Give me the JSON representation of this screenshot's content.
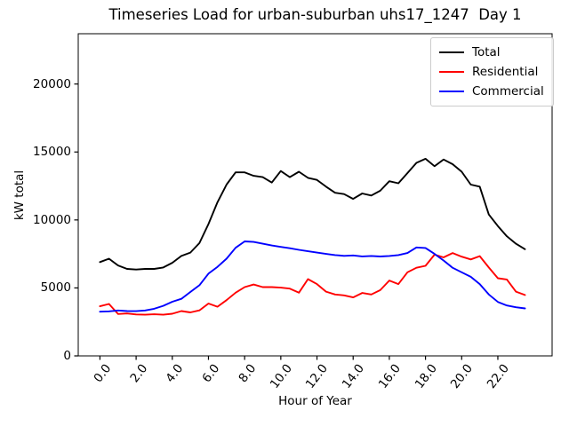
{
  "chart_data": {
    "type": "line",
    "title": "Timeseries Load for urban-suburban uhs17_1247  Day 1",
    "xlabel": "Hour of Year",
    "ylabel": "kW total",
    "grid": false,
    "legend_position": "upper right",
    "xlim": [
      -1.2,
      25.0
    ],
    "ylim": [
      0,
      23700
    ],
    "xticks": {
      "values": [
        0,
        2,
        4,
        6,
        8,
        10,
        12,
        14,
        16,
        18,
        20,
        22
      ],
      "labels": [
        "0.0",
        "2.0",
        "4.0",
        "6.0",
        "8.0",
        "10.0",
        "12.0",
        "14.0",
        "16.0",
        "18.0",
        "20.0",
        "22.0"
      ]
    },
    "yticks": {
      "values": [
        0,
        5000,
        10000,
        15000,
        20000
      ],
      "labels": [
        "0",
        "5000",
        "10000",
        "15000",
        "20000"
      ]
    },
    "x": [
      0,
      0.5,
      1,
      1.5,
      2,
      2.5,
      3,
      3.5,
      4,
      4.5,
      5,
      5.5,
      6,
      6.5,
      7,
      7.5,
      8,
      8.5,
      9,
      9.5,
      10,
      10.5,
      11,
      11.5,
      12,
      12.5,
      13,
      13.5,
      14,
      14.5,
      15,
      15.5,
      16,
      16.5,
      17,
      17.5,
      18,
      18.5,
      19,
      19.5,
      20,
      20.5,
      21,
      21.5,
      22,
      22.5,
      23,
      23.5
    ],
    "series": [
      {
        "name": "Total",
        "color": "#000000",
        "values": [
          6900,
          7150,
          6650,
          6400,
          6350,
          6400,
          6400,
          6500,
          6850,
          7350,
          7600,
          8300,
          9700,
          11300,
          12600,
          13500,
          13500,
          13250,
          13150,
          12750,
          13600,
          13150,
          13550,
          13100,
          12950,
          12450,
          12000,
          11900,
          11550,
          11950,
          11800,
          12150,
          12850,
          12700,
          13450,
          14200,
          14500,
          13950,
          14450,
          14100,
          13550,
          12600,
          12450,
          10400,
          9550,
          8800,
          8250,
          7850
        ]
      },
      {
        "name": "Residential",
        "color": "#ff0000",
        "values": [
          3650,
          3820,
          3080,
          3120,
          3050,
          3030,
          3060,
          3030,
          3100,
          3300,
          3200,
          3350,
          3850,
          3620,
          4100,
          4650,
          5060,
          5250,
          5060,
          5060,
          5020,
          4950,
          4650,
          5650,
          5280,
          4730,
          4520,
          4450,
          4300,
          4630,
          4520,
          4840,
          5540,
          5280,
          6150,
          6480,
          6630,
          7450,
          7250,
          7570,
          7300,
          7100,
          7340,
          6500,
          5715,
          5620,
          4730,
          4480
        ]
      },
      {
        "name": "Commercial",
        "color": "#0000ff",
        "values": [
          3250,
          3280,
          3340,
          3300,
          3290,
          3340,
          3470,
          3680,
          3980,
          4200,
          4700,
          5200,
          6050,
          6550,
          7150,
          7950,
          8420,
          8380,
          8250,
          8120,
          8020,
          7920,
          7800,
          7700,
          7600,
          7500,
          7420,
          7360,
          7390,
          7320,
          7350,
          7310,
          7350,
          7420,
          7570,
          7980,
          7940,
          7500,
          7020,
          6480,
          6150,
          5820,
          5280,
          4520,
          3970,
          3710,
          3580,
          3490
        ]
      }
    ]
  }
}
